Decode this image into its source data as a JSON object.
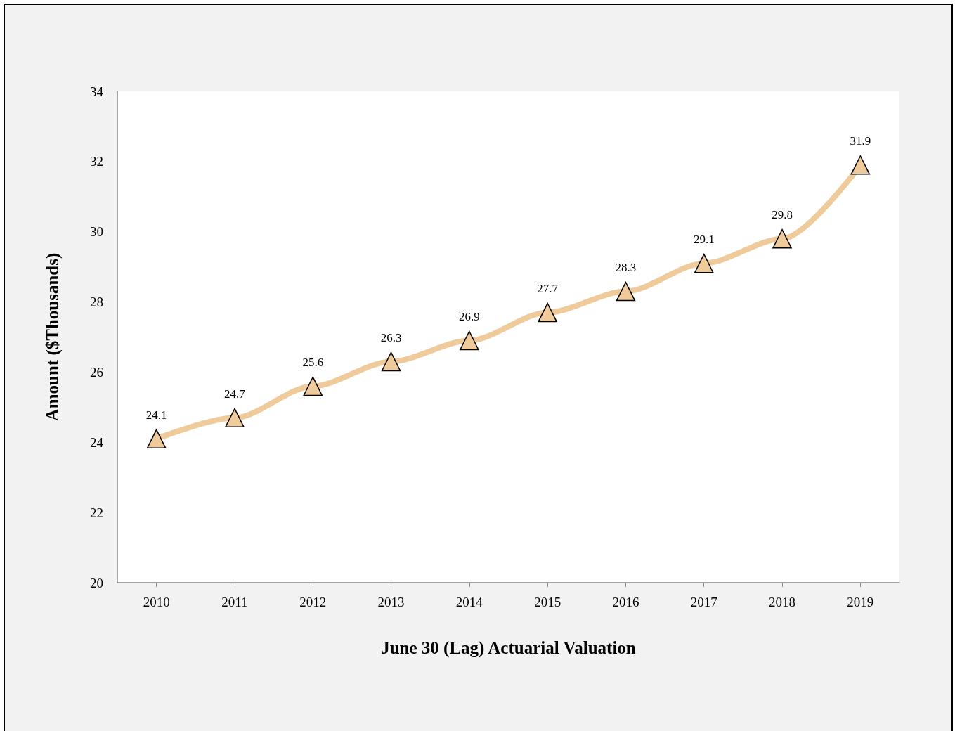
{
  "chart_data": {
    "type": "line",
    "xlabel": "June 30 (Lag) Actuarial Valuation",
    "ylabel": "Amount ($Thousands)",
    "categories": [
      "2010",
      "2011",
      "2012",
      "2013",
      "2014",
      "2015",
      "2016",
      "2017",
      "2018",
      "2019"
    ],
    "series": [
      {
        "color": "#efcb9c",
        "values": [
          24.1,
          24.7,
          25.6,
          26.3,
          26.9,
          27.7,
          28.3,
          29.1,
          29.8,
          31.9
        ]
      }
    ],
    "ylim": [
      20,
      34
    ],
    "yticks": [
      20,
      22,
      24,
      26,
      28,
      30,
      32,
      34
    ],
    "data_labels": true,
    "marker": "triangle",
    "grid": false
  }
}
